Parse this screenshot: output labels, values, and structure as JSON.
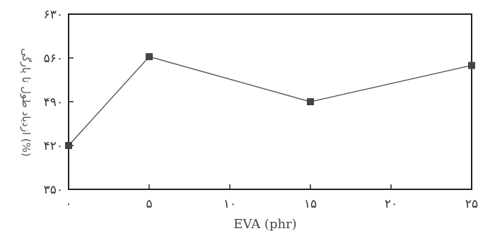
{
  "chart_data": {
    "type": "line",
    "title": "",
    "xlabel": "EVA (phr)",
    "ylabel": "ازدیاد طول تا پارگی (%)",
    "x": [
      0,
      5,
      15,
      25
    ],
    "x_tick_labels": [
      "۰",
      "۵",
      "۱۰",
      "۱۵",
      "۲۰",
      "۲۵"
    ],
    "x_ticks": [
      0,
      5,
      10,
      15,
      20,
      25
    ],
    "y_tick_labels": [
      "۳۵۰",
      "۴۲۰",
      "۴۹۰",
      "۵۶۰",
      "۶۳۰"
    ],
    "y_ticks": [
      350,
      420,
      490,
      560,
      630
    ],
    "xlim": [
      0,
      25
    ],
    "ylim": [
      350,
      630
    ],
    "series": [
      {
        "values": [
          420,
          562,
          490,
          548
        ]
      }
    ],
    "grid": false,
    "colors": {
      "line": "#555555",
      "marker": "#444444",
      "axis": "#222222"
    }
  }
}
